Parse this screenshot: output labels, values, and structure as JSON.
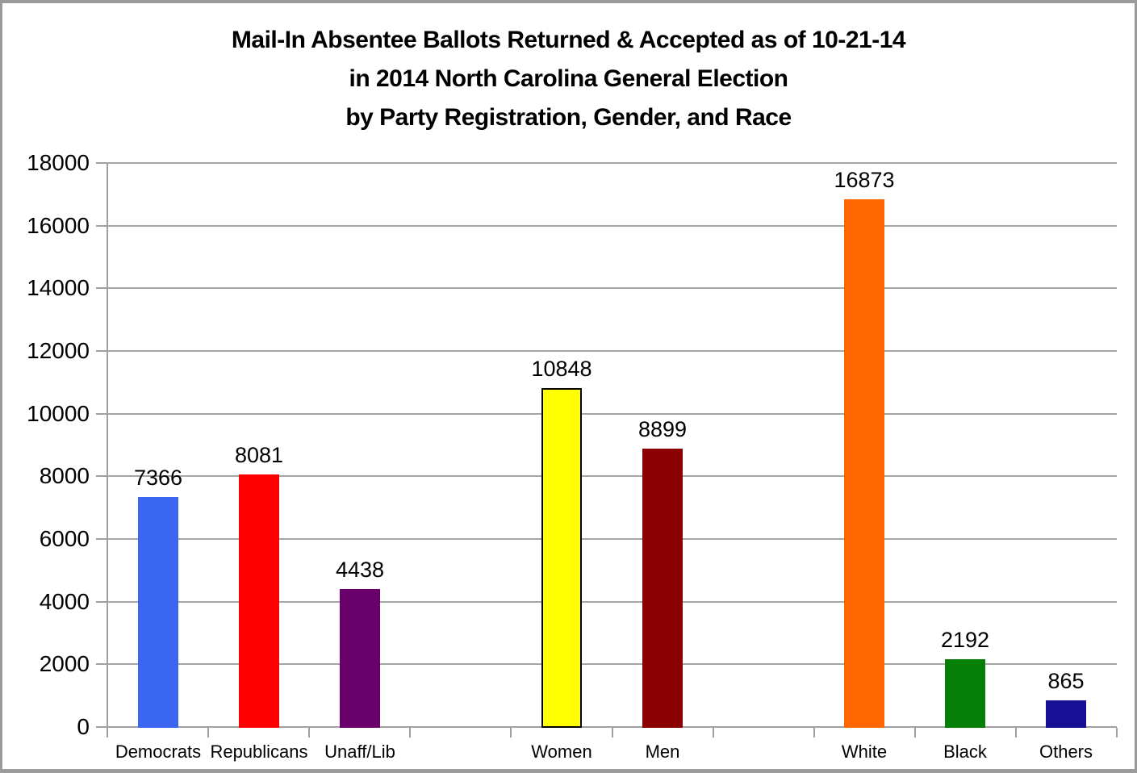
{
  "chart_data": {
    "type": "bar",
    "title_lines": [
      "Mail-In Absentee Ballots Returned & Accepted as of 10-21-14",
      "in 2014 North Carolina General Election",
      "by Party Registration, Gender, and Race"
    ],
    "categories": [
      "Democrats",
      "Republicans",
      "Unaff/Lib",
      "",
      "Women",
      "Men",
      "",
      "White",
      "Black",
      "Others"
    ],
    "values": [
      7366,
      8081,
      4438,
      null,
      10848,
      8899,
      null,
      16873,
      2192,
      865
    ],
    "bar_colors": [
      "#3A66F1",
      "#FF0000",
      "#6A016A",
      null,
      "#FFFF00",
      "#8B0000",
      null,
      "#FF6600",
      "#067F06",
      "#171094"
    ],
    "bar_border_colors": [
      null,
      null,
      null,
      null,
      "#000000",
      null,
      null,
      null,
      null,
      null
    ],
    "xlabel": "",
    "ylabel": "",
    "ylim": [
      0,
      18000
    ],
    "ytick_step": 2000,
    "ytick_labels": [
      "0",
      "2000",
      "4000",
      "6000",
      "8000",
      "10000",
      "12000",
      "14000",
      "16000",
      "18000"
    ],
    "grid": true,
    "legend": "none",
    "grid_color": "#A6A6A6",
    "axis_color": "#A0A0A0",
    "frame_color": "#9B9B9B",
    "value_labels_shown": true
  }
}
